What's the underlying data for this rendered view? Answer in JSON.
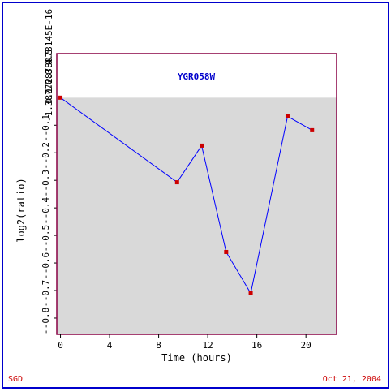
{
  "footer": {
    "left": "SGD",
    "right": "Oct 21, 2004"
  },
  "colors": {
    "frame": "#0000cc",
    "plot_border": "#880044",
    "band": "#d9d9d9",
    "line": "#0000ff",
    "marker": "#cc0000",
    "title": "#0000cc"
  },
  "chart_data": {
    "type": "line",
    "title": "YGR058W",
    "xlabel": "Time (hours)",
    "ylabel": "log2(ratio)",
    "xlim": [
      -0.3,
      22.5
    ],
    "ylim": [
      -0.859,
      0.16
    ],
    "x_ticks": [
      0,
      4,
      8,
      12,
      16,
      20
    ],
    "x_tick_labels": [
      "0",
      "4",
      "8",
      "12",
      "16",
      "20"
    ],
    "y_ticks": [
      -0.8,
      -0.7,
      -0.6,
      -0.5,
      -0.4,
      -0.3,
      -0.2,
      -0.1
    ],
    "y_tick_labels": [
      "-0.8",
      "-0.7",
      "-0.6",
      "-0.5",
      "-0.4",
      "-0.3",
      "-0.2",
      "-0.1"
    ],
    "y_overlapping_labels": [
      "-1.38777878078145E-16",
      "0.1",
      "0.2",
      "0.3",
      "0.4",
      "0.5"
    ],
    "band_top": -1.38777878078145e-16,
    "grid": false,
    "series": [
      {
        "x": [
          0,
          9.5,
          11.5,
          13.5,
          15.5,
          18.5,
          20.5
        ],
        "y": [
          0.0,
          -0.307,
          -0.174,
          -0.56,
          -0.71,
          -0.068,
          -0.118
        ]
      }
    ]
  }
}
